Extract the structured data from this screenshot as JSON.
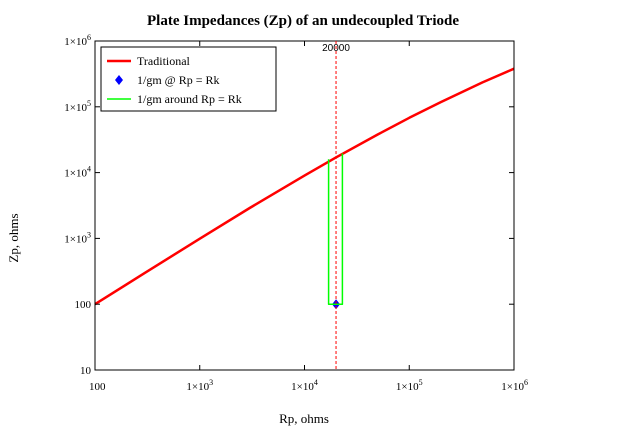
{
  "chart_data": {
    "type": "line",
    "title": "Plate Impedances (Zp) of an undecoupled Triode",
    "xlabel": "Rp, ohms",
    "ylabel": "Zp, ohms",
    "xscale": "log",
    "yscale": "log",
    "xlim": [
      100,
      1000000
    ],
    "ylim": [
      10,
      1000000
    ],
    "x_ticks": [
      {
        "value": 100,
        "label_base": "100",
        "label_exp": ""
      },
      {
        "value": 1000,
        "label_base": "1×10",
        "label_exp": "3"
      },
      {
        "value": 10000,
        "label_base": "1×10",
        "label_exp": "4"
      },
      {
        "value": 100000,
        "label_base": "1×10",
        "label_exp": "5"
      },
      {
        "value": 1000000,
        "label_base": "1×10",
        "label_exp": "6"
      }
    ],
    "y_ticks": [
      {
        "value": 10,
        "label_base": "10",
        "label_exp": ""
      },
      {
        "value": 100,
        "label_base": "100",
        "label_exp": ""
      },
      {
        "value": 1000,
        "label_base": "1×10",
        "label_exp": "3"
      },
      {
        "value": 10000,
        "label_base": "1×10",
        "label_exp": "4"
      },
      {
        "value": 100000,
        "label_base": "1×10",
        "label_exp": "5"
      },
      {
        "value": 1000000,
        "label_base": "1×10",
        "label_exp": "6"
      }
    ],
    "legend_position": "top-left",
    "grid": false,
    "series": [
      {
        "name": "Traditional",
        "style": "line",
        "color": "#ff0000",
        "x": [
          100,
          300,
          1000,
          3000,
          10000,
          20000,
          50000,
          100000,
          200000,
          500000,
          1000000
        ],
        "y": [
          100,
          300,
          990,
          2900,
          9000,
          17000,
          38000,
          68000,
          118000,
          235000,
          380000
        ]
      },
      {
        "name": "1/gm @ Rp = Rk",
        "style": "marker",
        "marker": "diamond",
        "color": "#0000ff",
        "x": [
          20000
        ],
        "y": [
          100
        ]
      },
      {
        "name": "1/gm around Rp = Rk",
        "style": "line",
        "color": "#00ff00",
        "x": [
          17000,
          17000,
          23000,
          23000
        ],
        "y": [
          16000,
          100,
          100,
          19500
        ]
      }
    ],
    "vline": {
      "x": 20000,
      "label": "20000",
      "color": "#ff0000",
      "style": "dashed"
    }
  }
}
